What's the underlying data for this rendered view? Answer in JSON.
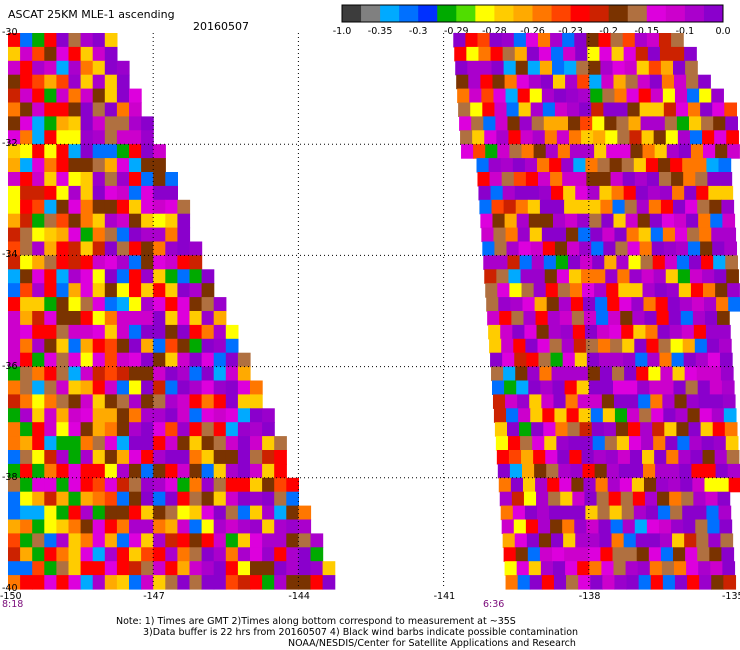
{
  "header": {
    "title": "ASCAT 25KM MLE-1 ascending",
    "date": "20160507"
  },
  "colorbar": {
    "labels": [
      "-1.0",
      "-0.35",
      "-0.3",
      "-0.29",
      "-0.28",
      "-0.26",
      "-0.23",
      "-0.2",
      "-0.15",
      "-0.1",
      "0.0"
    ],
    "colors": [
      "#3c3c3c",
      "#808080",
      "#00aaff",
      "#0070ff",
      "#0030ff",
      "#00aa00",
      "#50dd00",
      "#ffff00",
      "#ffcc00",
      "#ffaa00",
      "#ff7700",
      "#ff4400",
      "#ff0000",
      "#cc2200",
      "#7a3300",
      "#b07040",
      "#dd00dd",
      "#cc00cc",
      "#aa00cc",
      "#8a00cc"
    ]
  },
  "map": {
    "x_ticks": [
      "-150",
      "-147",
      "-144",
      "-141",
      "-138",
      "-135"
    ],
    "y_ticks": [
      "-30",
      "-32",
      "-34",
      "-36",
      "-38",
      "-40"
    ],
    "times": [
      "8:18",
      "6:36"
    ],
    "lon_range": [
      -150,
      -135
    ],
    "lat_range": [
      -40,
      -30
    ],
    "gridlines": true,
    "cell_deg": 0.25
  },
  "notes": {
    "line1": "Note: 1) Times are GMT 2)Times along bottom correspond to measurement at ~35S",
    "line2": "3)Data buffer is 22 hrs from 20160507 4) Black wind barbs indicate possible contamination",
    "line3": "NOAA/NESDIS/Center for Satellite Applications and Research"
  }
}
